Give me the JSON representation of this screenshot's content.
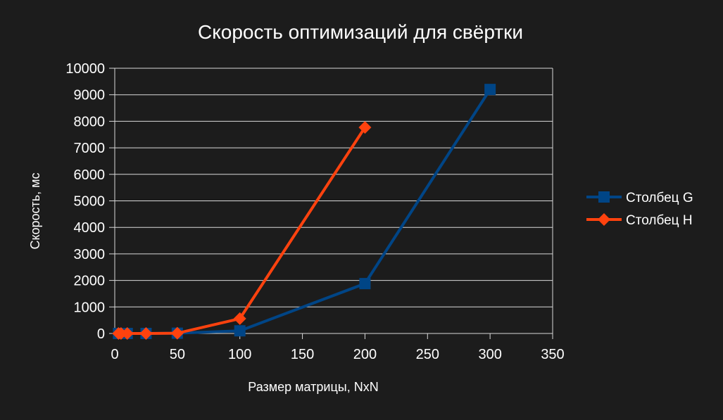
{
  "chart_data": {
    "type": "line",
    "title": "Скорость оптимизаций для свёртки",
    "xlabel": "Размер матрицы, NxN",
    "ylabel": "Скорость, мс",
    "xlim": [
      0,
      350
    ],
    "ylim": [
      0,
      10000
    ],
    "x_ticks": [
      "0",
      "50",
      "100",
      "150",
      "200",
      "250",
      "300",
      "350"
    ],
    "y_ticks": [
      "0",
      "1000",
      "2000",
      "3000",
      "4000",
      "5000",
      "6000",
      "7000",
      "8000",
      "9000",
      "10000"
    ],
    "grid": "horizontal",
    "legend_position": "right",
    "series": [
      {
        "name": "Столбец G",
        "color": "#004586",
        "marker": "square",
        "x": [
          3,
          5,
          10,
          25,
          50,
          100,
          200,
          300
        ],
        "y": [
          0,
          0,
          0,
          0,
          10,
          100,
          1880,
          9200
        ]
      },
      {
        "name": "Столбец H",
        "color": "#ff420e",
        "marker": "diamond",
        "x": [
          3,
          5,
          10,
          25,
          50,
          100,
          200
        ],
        "y": [
          0,
          0,
          0,
          0,
          10,
          560,
          7770
        ]
      }
    ]
  }
}
